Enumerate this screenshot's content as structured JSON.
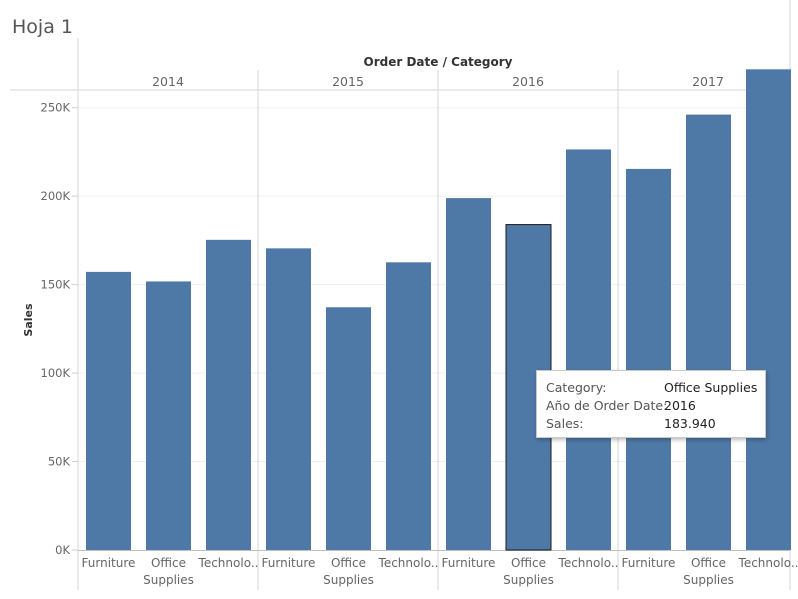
{
  "sheet": {
    "title": "Hoja 1"
  },
  "chart_data": {
    "type": "bar",
    "header_title": "Order Date / Category",
    "ylabel": "Sales",
    "ylim": [
      0,
      260000
    ],
    "yticks": [
      0,
      50000,
      100000,
      150000,
      200000,
      250000
    ],
    "ytick_labels": [
      "0K",
      "50K",
      "100K",
      "150K",
      "200K",
      "250K"
    ],
    "x_labels": {
      "Furniture": [
        "Furniture"
      ],
      "Office Supplies": [
        "Office",
        "Supplies"
      ],
      "Technology": [
        "Technolo.."
      ]
    },
    "groups": [
      {
        "year": "2014",
        "bars": [
          {
            "category": "Furniture",
            "value": 157200
          },
          {
            "category": "Office Supplies",
            "value": 151800
          },
          {
            "category": "Technology",
            "value": 175300
          }
        ]
      },
      {
        "year": "2015",
        "bars": [
          {
            "category": "Furniture",
            "value": 170500
          },
          {
            "category": "Office Supplies",
            "value": 137200
          },
          {
            "category": "Technology",
            "value": 162600
          }
        ]
      },
      {
        "year": "2016",
        "bars": [
          {
            "category": "Furniture",
            "value": 198900
          },
          {
            "category": "Office Supplies",
            "value": 183940
          },
          {
            "category": "Technology",
            "value": 226400
          }
        ]
      },
      {
        "year": "2017",
        "bars": [
          {
            "category": "Furniture",
            "value": 215400
          },
          {
            "category": "Office Supplies",
            "value": 246100
          },
          {
            "category": "Technology",
            "value": 271700
          }
        ]
      }
    ],
    "bar_color": "#4e79a7",
    "selected": {
      "year": "2016",
      "category": "Office Supplies"
    },
    "grid": true
  },
  "tooltip": {
    "rows": [
      {
        "key": "Category:",
        "value": "Office Supplies"
      },
      {
        "key": "Año de Order Date:",
        "value": "2016"
      },
      {
        "key": "Sales:",
        "value": "183.940"
      }
    ]
  }
}
